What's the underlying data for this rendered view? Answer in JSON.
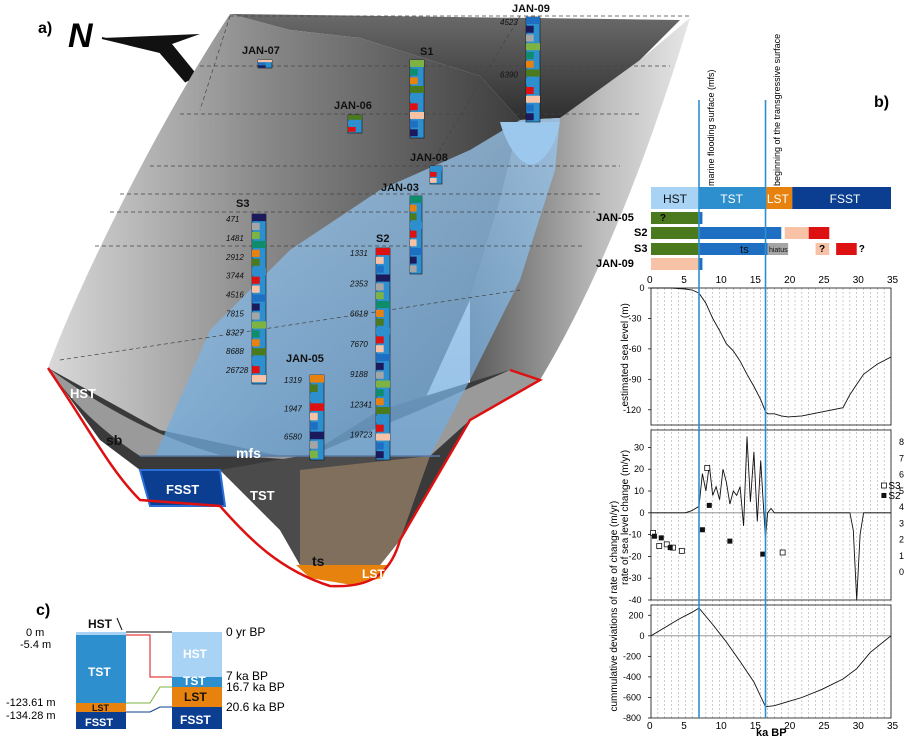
{
  "panel_a": {
    "label": "a)",
    "north": "N",
    "cores": [
      {
        "name": "JAN-07"
      },
      {
        "name": "JAN-06"
      },
      {
        "name": "S1"
      },
      {
        "name": "JAN-09",
        "ages": [
          "4523",
          "6390"
        ]
      },
      {
        "name": "JAN-08"
      },
      {
        "name": "JAN-03"
      },
      {
        "name": "S3",
        "ages": [
          "471",
          "1481",
          "2912",
          "3744",
          "4516",
          "7815",
          "8327",
          "8688",
          "26728"
        ]
      },
      {
        "name": "S2",
        "ages": [
          "1331",
          "2353",
          "6618",
          "7670",
          "9188",
          "12341",
          "19723"
        ]
      },
      {
        "name": "JAN-05",
        "ages": [
          "1319",
          "1947",
          "6580"
        ]
      }
    ],
    "units": {
      "hst": "HST",
      "sb": "sb",
      "mfs": "mfs",
      "fsst": "FSST",
      "tst": "TST",
      "ts": "ts",
      "lst": "LST"
    }
  },
  "panel_b": {
    "label": "b)",
    "annot_mfs": "marine flooding surface (mfs)",
    "annot_ts": "beginning of the transgressive surface",
    "bands": [
      {
        "label": "HST",
        "from": 0,
        "to": 7,
        "color": "#a9d3f5"
      },
      {
        "label": "TST",
        "from": 7,
        "to": 16.7,
        "color": "#2e8fcf"
      },
      {
        "label": "LST",
        "from": 16.7,
        "to": 20.6,
        "color": "#e8820e"
      },
      {
        "label": "FSST",
        "from": 20.6,
        "to": 35,
        "color": "#0b3d91"
      }
    ],
    "core_rows": [
      "JAN-05",
      "S2",
      "S3",
      "JAN-09"
    ],
    "core_notes": {
      "q1": "?",
      "ts": "ts",
      "hiatus": "hiatus",
      "q2": "?",
      "q3": "?"
    },
    "xticks": [
      "0",
      "5",
      "10",
      "15",
      "20",
      "25",
      "30",
      "35"
    ],
    "xlabel": "ka BP",
    "mfs_line": 7,
    "ts_line": 16.7,
    "sea_level": {
      "ylabel": "estimated sea level (m)",
      "yticks": [
        "0",
        "-30",
        "-60",
        "-90",
        "-120"
      ],
      "ylim": [
        -135,
        0
      ],
      "x": [
        0,
        3,
        5,
        6,
        7,
        8,
        9,
        10,
        11,
        12,
        13,
        14,
        15,
        16,
        16.7,
        17,
        18,
        19,
        20,
        22,
        25,
        28,
        29,
        30,
        31,
        32,
        33,
        35
      ],
      "y": [
        0,
        0,
        -1,
        -2,
        -5,
        -15,
        -30,
        -42,
        -55,
        -62,
        -72,
        -85,
        -97,
        -110,
        -122,
        -124,
        -124,
        -126,
        -127,
        -126,
        -122,
        -118,
        -105,
        -95,
        -85,
        -80,
        -75,
        -68
      ]
    },
    "rate": {
      "ylabel": "rate of sea level change (m/yr)",
      "yticks": [
        "30",
        "20",
        "10",
        "0",
        "-10",
        "-20",
        "-30",
        "-40"
      ],
      "ylim": [
        -40,
        38
      ],
      "yticks_right": [
        "8",
        "7",
        "6",
        "5",
        "4",
        "3",
        "2",
        "1",
        "0"
      ],
      "legend": [
        {
          "name": "S3",
          "marker": "open-square"
        },
        {
          "name": "S2",
          "marker": "filled-square"
        }
      ],
      "x": [
        0,
        5,
        6,
        7,
        7.5,
        8,
        8.5,
        9,
        9.5,
        10,
        10.5,
        11,
        11.5,
        12,
        12.5,
        13,
        13.5,
        14,
        14.5,
        15,
        15.5,
        16,
        16.3,
        16.7,
        17,
        17.5,
        18,
        20,
        25,
        29,
        29.5,
        30,
        30.5,
        31,
        35
      ],
      "y": [
        0,
        0,
        1,
        3,
        18,
        10,
        22,
        8,
        12,
        6,
        20,
        14,
        4,
        10,
        8,
        12,
        -6,
        35,
        5,
        28,
        -4,
        24,
        8,
        -12,
        0,
        2,
        0,
        0,
        0,
        0,
        -8,
        -40,
        -10,
        0,
        0
      ],
      "s3_points": {
        "x": [
          0.3,
          1.2,
          2.3,
          3.2,
          4.5,
          8.2,
          19.2
        ],
        "y": [
          2.4,
          1.6,
          1.7,
          1.5,
          1.3,
          6.4,
          1.2
        ]
      },
      "s2_points": {
        "x": [
          0.5,
          1.5,
          2.8,
          7.5,
          8.5,
          11.5,
          16.3
        ],
        "y": [
          2.2,
          2.1,
          1.5,
          2.6,
          4.1,
          1.9,
          1.1
        ]
      }
    },
    "cumulative": {
      "ylabel": "cummulative deviations of rate of change (m/yr)",
      "yticks": [
        "200",
        "0",
        "-200",
        "-400",
        "-600",
        "-800"
      ],
      "ylim": [
        -800,
        300
      ],
      "x": [
        0,
        2,
        4,
        6,
        7,
        9,
        11,
        13,
        15,
        16.7,
        18,
        20,
        22,
        25,
        28,
        30,
        32,
        35
      ],
      "y": [
        0,
        80,
        160,
        230,
        270,
        110,
        -60,
        -250,
        -450,
        -690,
        -680,
        -640,
        -600,
        -520,
        -420,
        -320,
        -160,
        0
      ]
    }
  },
  "panel_c": {
    "label": "c)",
    "left_depths": [
      "0 m",
      "-5.4 m",
      "-123.61 m",
      "-134.28 m"
    ],
    "left_units": [
      "HST",
      "TST",
      "LST",
      "FSST"
    ],
    "right_units": [
      "HST",
      "TST",
      "LST",
      "FSST"
    ],
    "right_ages": [
      "0 yr BP",
      "7 ka BP",
      "16.7 ka BP",
      "20.6 ka BP"
    ]
  }
}
